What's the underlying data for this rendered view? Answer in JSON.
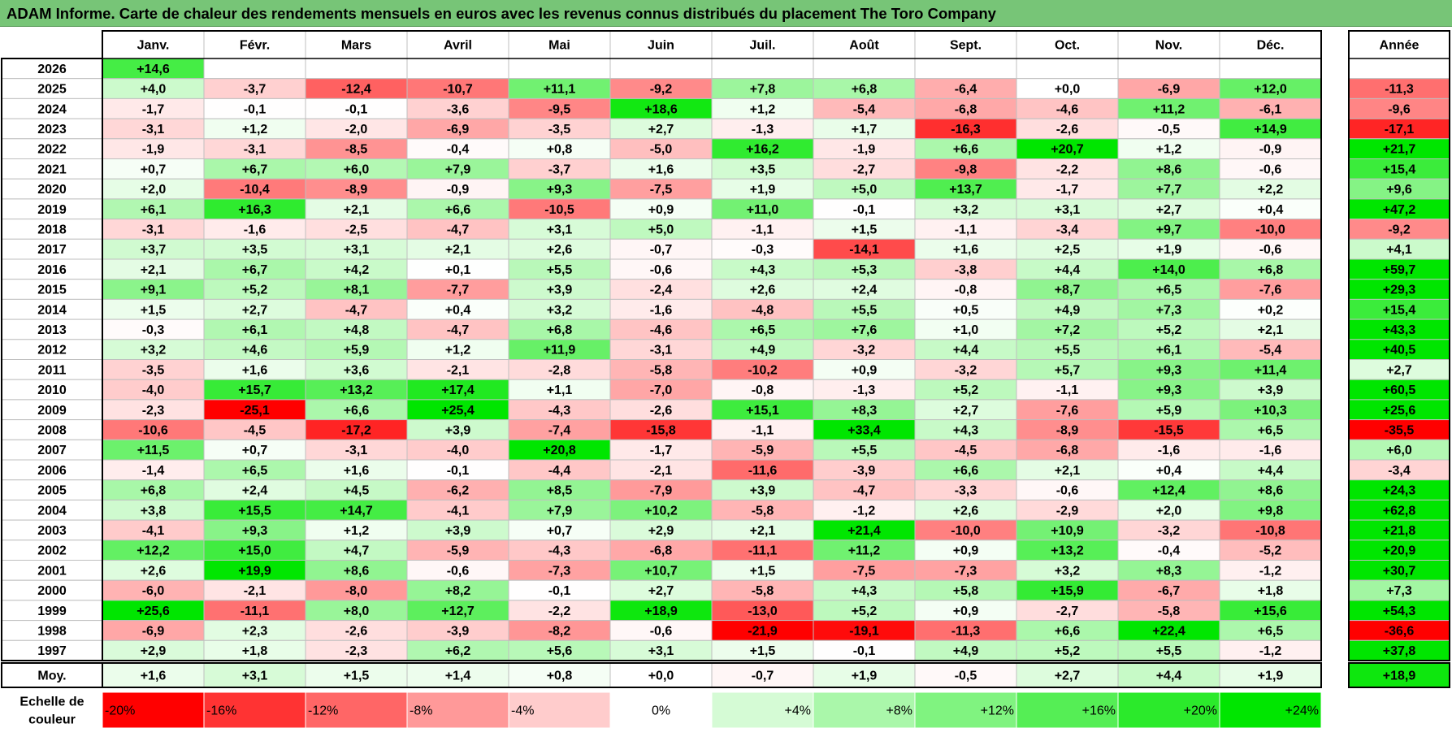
{
  "title": "ADAM Informe. Carte de chaleur des rendements mensuels en euros avec les revenus connus distribués du placement The Toro Company",
  "chart_data": {
    "type": "heatmap",
    "title": "ADAM Informe. Carte de chaleur des rendements mensuels en euros avec les revenus connus distribués du placement The Toro Company",
    "columns": [
      "Janv.",
      "Févr.",
      "Mars",
      "Avril",
      "Mai",
      "Juin",
      "Juil.",
      "Août",
      "Sept.",
      "Oct.",
      "Nov.",
      "Déc."
    ],
    "annual_label": "Année",
    "rows": [
      {
        "year": "2026",
        "values": [
          "+14,6",
          "",
          "",
          "",
          "",
          "",
          "",
          "",
          "",
          "",
          "",
          ""
        ],
        "annual": ""
      },
      {
        "year": "2025",
        "values": [
          "+4,0",
          "-3,7",
          "-12,4",
          "-10,7",
          "+11,1",
          "-9,2",
          "+7,8",
          "+6,8",
          "-6,4",
          "+0,0",
          "-6,9",
          "+12,0"
        ],
        "annual": "-11,3"
      },
      {
        "year": "2024",
        "values": [
          "-1,7",
          "-0,1",
          "-0,1",
          "-3,6",
          "-9,5",
          "+18,6",
          "+1,2",
          "-5,4",
          "-6,8",
          "-4,6",
          "+11,2",
          "-6,1"
        ],
        "annual": "-9,6"
      },
      {
        "year": "2023",
        "values": [
          "-3,1",
          "+1,2",
          "-2,0",
          "-6,9",
          "-3,5",
          "+2,7",
          "-1,3",
          "+1,7",
          "-16,3",
          "-2,6",
          "-0,5",
          "+14,9"
        ],
        "annual": "-17,1"
      },
      {
        "year": "2022",
        "values": [
          "-1,9",
          "-3,1",
          "-8,5",
          "-0,4",
          "+0,8",
          "-5,0",
          "+16,2",
          "-1,9",
          "+6,6",
          "+20,7",
          "+1,2",
          "-0,9"
        ],
        "annual": "+21,7"
      },
      {
        "year": "2021",
        "values": [
          "+0,7",
          "+6,7",
          "+6,0",
          "+7,9",
          "-3,7",
          "+1,6",
          "+3,5",
          "-2,7",
          "-9,8",
          "-2,2",
          "+8,6",
          "-0,6"
        ],
        "annual": "+15,4"
      },
      {
        "year": "2020",
        "values": [
          "+2,0",
          "-10,4",
          "-8,9",
          "-0,9",
          "+9,3",
          "-7,5",
          "+1,9",
          "+5,0",
          "+13,7",
          "-1,7",
          "+7,7",
          "+2,2"
        ],
        "annual": "+9,6"
      },
      {
        "year": "2019",
        "values": [
          "+6,1",
          "+16,3",
          "+2,1",
          "+6,6",
          "-10,5",
          "+0,9",
          "+11,0",
          "-0,1",
          "+3,2",
          "+3,1",
          "+2,7",
          "+0,4"
        ],
        "annual": "+47,2"
      },
      {
        "year": "2018",
        "values": [
          "-3,1",
          "-1,6",
          "-2,5",
          "-4,7",
          "+3,1",
          "+5,0",
          "-1,1",
          "+1,5",
          "-1,1",
          "-3,4",
          "+9,7",
          "-10,0"
        ],
        "annual": "-9,2"
      },
      {
        "year": "2017",
        "values": [
          "+3,7",
          "+3,5",
          "+3,1",
          "+2,1",
          "+2,6",
          "-0,7",
          "-0,3",
          "-14,1",
          "+1,6",
          "+2,5",
          "+1,9",
          "-0,6"
        ],
        "annual": "+4,1"
      },
      {
        "year": "2016",
        "values": [
          "+2,1",
          "+6,7",
          "+4,2",
          "+0,1",
          "+5,5",
          "-0,6",
          "+4,3",
          "+5,3",
          "-3,8",
          "+4,4",
          "+14,0",
          "+6,8"
        ],
        "annual": "+59,7"
      },
      {
        "year": "2015",
        "values": [
          "+9,1",
          "+5,2",
          "+8,1",
          "-7,7",
          "+3,9",
          "-2,4",
          "+2,6",
          "+2,4",
          "-0,8",
          "+8,7",
          "+6,5",
          "-7,6"
        ],
        "annual": "+29,3"
      },
      {
        "year": "2014",
        "values": [
          "+1,5",
          "+2,7",
          "-4,7",
          "+0,4",
          "+3,2",
          "-1,6",
          "-4,8",
          "+5,5",
          "+0,5",
          "+4,9",
          "+7,3",
          "+0,2"
        ],
        "annual": "+15,4"
      },
      {
        "year": "2013",
        "values": [
          "-0,3",
          "+6,1",
          "+4,8",
          "-4,7",
          "+6,8",
          "-4,6",
          "+6,5",
          "+7,6",
          "+1,0",
          "+7,2",
          "+5,2",
          "+2,1"
        ],
        "annual": "+43,3"
      },
      {
        "year": "2012",
        "values": [
          "+3,2",
          "+4,6",
          "+5,9",
          "+1,2",
          "+11,9",
          "-3,1",
          "+4,9",
          "-3,2",
          "+4,4",
          "+5,5",
          "+6,1",
          "-5,4"
        ],
        "annual": "+40,5"
      },
      {
        "year": "2011",
        "values": [
          "-3,5",
          "+1,6",
          "+3,6",
          "-2,1",
          "-2,8",
          "-5,8",
          "-10,2",
          "+0,9",
          "-3,2",
          "+5,7",
          "+9,3",
          "+11,4"
        ],
        "annual": "+2,7"
      },
      {
        "year": "2010",
        "values": [
          "-4,0",
          "+15,7",
          "+13,2",
          "+17,4",
          "+1,1",
          "-7,0",
          "-0,8",
          "-1,3",
          "+5,2",
          "-1,1",
          "+9,3",
          "+3,9"
        ],
        "annual": "+60,5"
      },
      {
        "year": "2009",
        "values": [
          "-2,3",
          "-25,1",
          "+6,6",
          "+25,4",
          "-4,3",
          "-2,6",
          "+15,1",
          "+8,3",
          "+2,7",
          "-7,6",
          "+5,9",
          "+10,3"
        ],
        "annual": "+25,6"
      },
      {
        "year": "2008",
        "values": [
          "-10,6",
          "-4,5",
          "-17,2",
          "+3,9",
          "-7,4",
          "-15,8",
          "-1,1",
          "+33,4",
          "+4,3",
          "-8,9",
          "-15,5",
          "+6,5"
        ],
        "annual": "-35,5"
      },
      {
        "year": "2007",
        "values": [
          "+11,5",
          "+0,7",
          "-3,1",
          "-4,0",
          "+20,8",
          "-1,7",
          "-5,9",
          "+5,5",
          "-4,5",
          "-6,8",
          "-1,6",
          "-1,6"
        ],
        "annual": "+6,0"
      },
      {
        "year": "2006",
        "values": [
          "-1,4",
          "+6,5",
          "+1,6",
          "-0,1",
          "-4,4",
          "-2,1",
          "-11,6",
          "-3,9",
          "+6,6",
          "+2,1",
          "+0,4",
          "+4,4"
        ],
        "annual": "-3,4"
      },
      {
        "year": "2005",
        "values": [
          "+6,8",
          "+2,4",
          "+4,5",
          "-6,2",
          "+8,5",
          "-7,9",
          "+3,9",
          "-4,7",
          "-3,3",
          "-0,6",
          "+12,4",
          "+8,6"
        ],
        "annual": "+24,3"
      },
      {
        "year": "2004",
        "values": [
          "+3,8",
          "+15,5",
          "+14,7",
          "-4,1",
          "+7,9",
          "+10,2",
          "-5,8",
          "-1,2",
          "+2,6",
          "-2,9",
          "+2,0",
          "+9,8"
        ],
        "annual": "+62,8"
      },
      {
        "year": "2003",
        "values": [
          "-4,1",
          "+9,3",
          "+1,2",
          "+3,9",
          "+0,7",
          "+2,9",
          "+2,1",
          "+21,4",
          "-10,0",
          "+10,9",
          "-3,2",
          "-10,8"
        ],
        "annual": "+21,8"
      },
      {
        "year": "2002",
        "values": [
          "+12,2",
          "+15,0",
          "+4,7",
          "-5,9",
          "-4,3",
          "-6,8",
          "-11,1",
          "+11,2",
          "+0,9",
          "+13,2",
          "-0,4",
          "-5,2"
        ],
        "annual": "+20,9"
      },
      {
        "year": "2001",
        "values": [
          "+2,6",
          "+19,9",
          "+8,6",
          "-0,6",
          "-7,3",
          "+10,7",
          "+1,5",
          "-7,5",
          "-7,3",
          "+3,2",
          "+8,3",
          "-1,2"
        ],
        "annual": "+30,7"
      },
      {
        "year": "2000",
        "values": [
          "-6,0",
          "-2,1",
          "-8,0",
          "+8,2",
          "-0,1",
          "+2,7",
          "-5,8",
          "+4,3",
          "+5,8",
          "+15,9",
          "-6,7",
          "+1,8"
        ],
        "annual": "+7,3"
      },
      {
        "year": "1999",
        "values": [
          "+25,6",
          "-11,1",
          "+8,0",
          "+12,7",
          "-2,2",
          "+18,9",
          "-13,0",
          "+5,2",
          "+0,9",
          "-2,7",
          "-5,8",
          "+15,6"
        ],
        "annual": "+54,3"
      },
      {
        "year": "1998",
        "values": [
          "-6,9",
          "+2,3",
          "-2,6",
          "-3,9",
          "-8,2",
          "-0,6",
          "-21,9",
          "-19,1",
          "-11,3",
          "+6,6",
          "+22,4",
          "+6,5"
        ],
        "annual": "-36,6"
      },
      {
        "year": "1997",
        "values": [
          "+2,9",
          "+1,8",
          "-2,3",
          "+6,2",
          "+5,6",
          "+3,1",
          "+1,5",
          "-0,1",
          "+4,9",
          "+5,2",
          "+5,5",
          "-1,2"
        ],
        "annual": "+37,8"
      }
    ],
    "average": {
      "label": "Moy.",
      "values": [
        "+1,6",
        "+3,1",
        "+1,5",
        "+1,4",
        "+0,8",
        "+0,0",
        "-0,7",
        "+1,9",
        "-0,5",
        "+2,7",
        "+4,4",
        "+1,9"
      ],
      "annual": "+18,9"
    },
    "scale": {
      "label_line1": "Echelle de",
      "label_line2": "couleur",
      "steps": [
        {
          "label": "-20%",
          "value": -20
        },
        {
          "label": "-16%",
          "value": -16
        },
        {
          "label": "-12%",
          "value": -12
        },
        {
          "label": "-8%",
          "value": -8
        },
        {
          "label": "-4%",
          "value": -4
        },
        {
          "label": "0%",
          "value": 0
        },
        {
          "label": "+4%",
          "value": 4
        },
        {
          "label": "+8%",
          "value": 8
        },
        {
          "label": "+12%",
          "value": 12
        },
        {
          "label": "+16%",
          "value": 16
        },
        {
          "label": "+20%",
          "value": 20
        },
        {
          "label": "+24%",
          "value": 24
        }
      ]
    },
    "colors": {
      "negative_max": "#ff0000",
      "neutral": "#ffffff",
      "positive_max": "#00e600",
      "title_bar": "#77c577",
      "grid": "#bfbfbf",
      "border": "#000000"
    }
  }
}
